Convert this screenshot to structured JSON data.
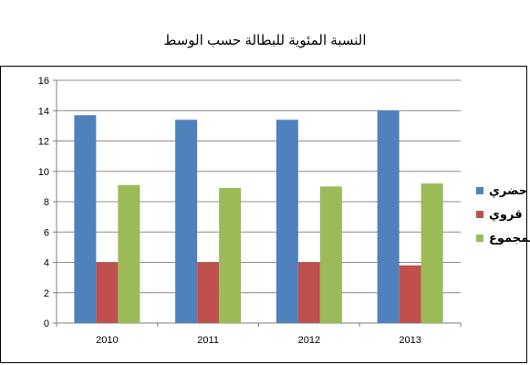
{
  "chart_data": {
    "type": "bar",
    "title": "النسبة المئوية للبطالة حسب الوسط",
    "categories": [
      "2010",
      "2011",
      "2012",
      "2013"
    ],
    "series": [
      {
        "name": "حضري",
        "color": "#4F81BD",
        "values": [
          13.7,
          13.4,
          13.4,
          14.0
        ]
      },
      {
        "name": "قروي",
        "color": "#C0504D",
        "values": [
          4.0,
          4.0,
          4.0,
          3.8
        ]
      },
      {
        "name": "المجموع",
        "color": "#9BBB59",
        "values": [
          9.1,
          8.9,
          9.0,
          9.2
        ]
      }
    ],
    "ylim": [
      0,
      16
    ],
    "yticks": [
      0,
      2,
      4,
      6,
      8,
      10,
      12,
      14,
      16
    ],
    "grid": true,
    "legend_position": "right"
  }
}
